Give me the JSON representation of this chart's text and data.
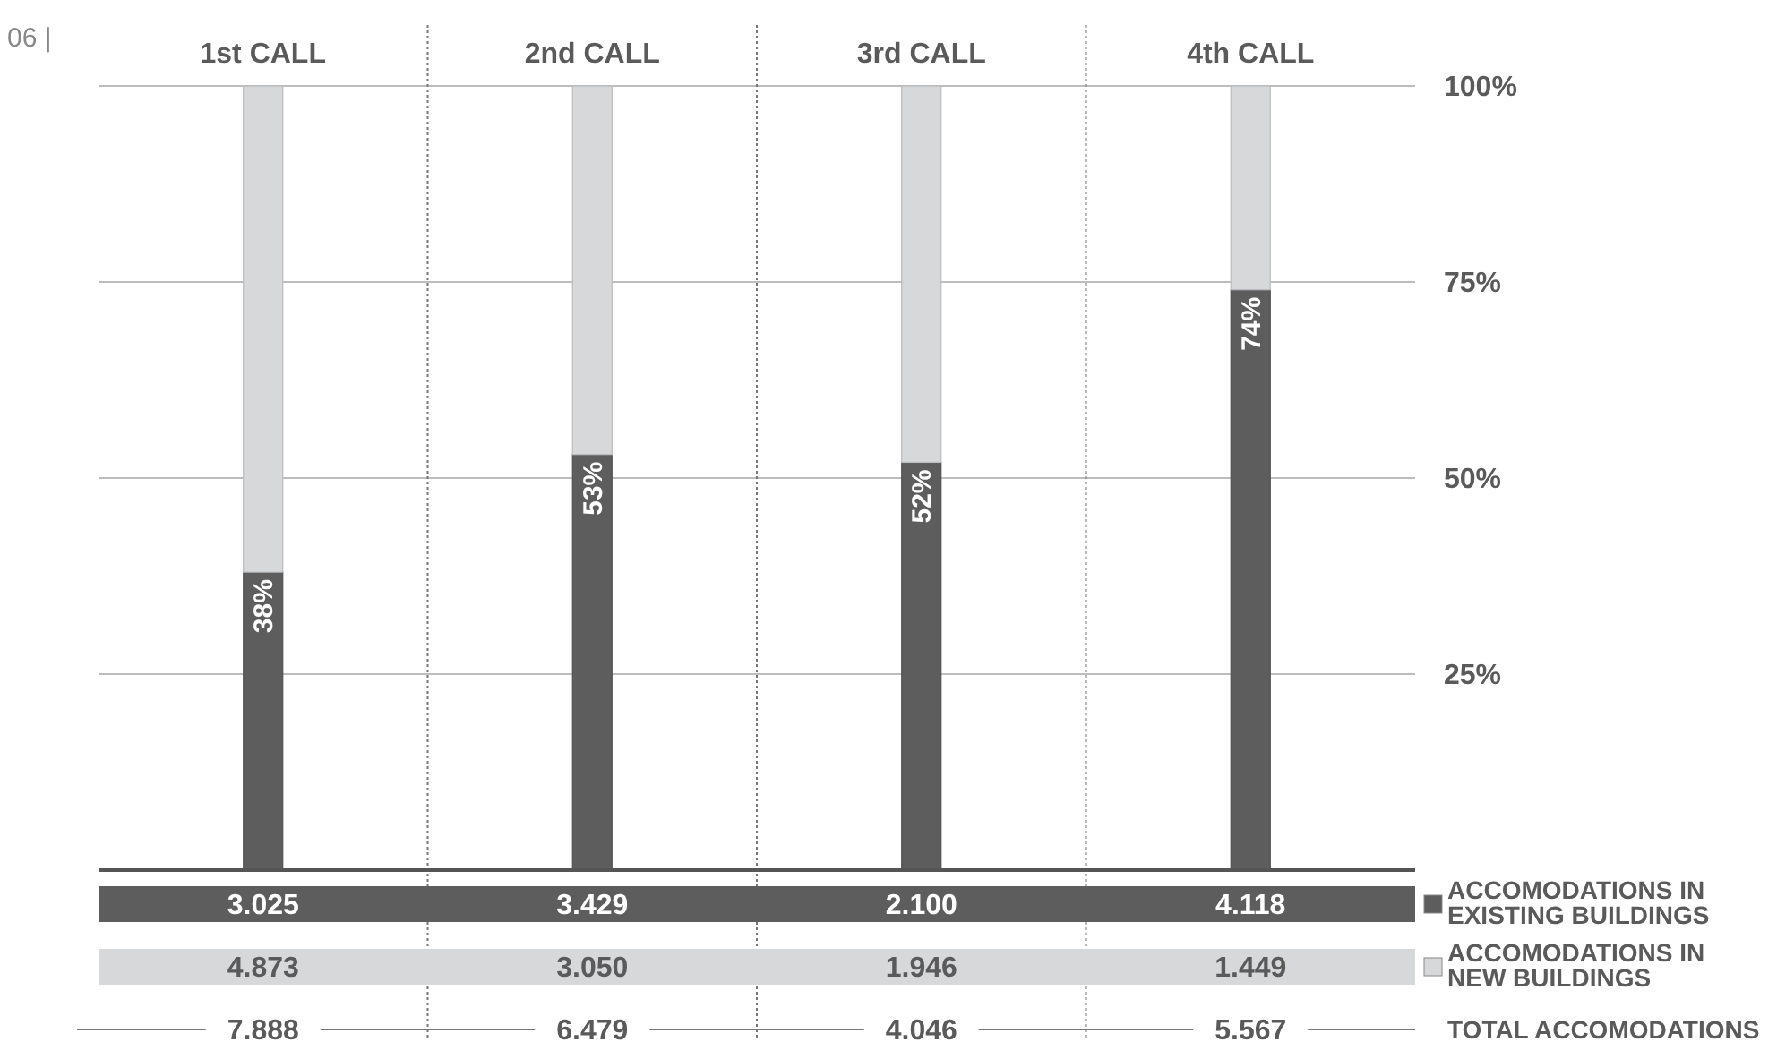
{
  "chart_data": {
    "type": "bar",
    "stacked": true,
    "categories": [
      "1st CALL",
      "2nd CALL",
      "3rd CALL",
      "4th CALL"
    ],
    "series": [
      {
        "name": "ACCOMODATIONS IN EXISTING BUILDINGS",
        "color": "#5d5d5e",
        "values": [
          38,
          53,
          52,
          74
        ],
        "value_labels": [
          "38%",
          "53%",
          "52%",
          "74%"
        ]
      },
      {
        "name": "ACCOMODATIONS IN NEW BUILDINGS",
        "color": "#d7d8da",
        "values": [
          62,
          47,
          48,
          26
        ]
      }
    ],
    "ylim": [
      0,
      100
    ],
    "yticks": [
      {
        "value": 25,
        "label": "25%"
      },
      {
        "value": 50,
        "label": "50%"
      },
      {
        "value": 75,
        "label": "75%"
      },
      {
        "value": 100,
        "label": "100%"
      }
    ],
    "grid": "y",
    "legend": "bottom right",
    "annotations": [
      "06 |",
      "3.025",
      "3.429",
      "2.100",
      "4.118",
      "4.873",
      "3.050",
      "1.946",
      "1.449",
      "7.888",
      "6.479",
      "4.046",
      "5.567",
      "TOTAL ACCOMODATIONS"
    ]
  }
}
